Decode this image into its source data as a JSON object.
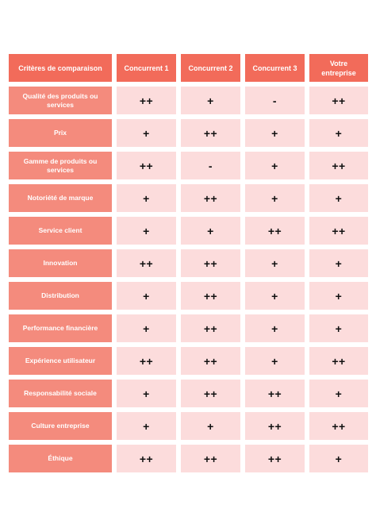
{
  "header": {
    "criteria": "Critères de comparaison",
    "columns": [
      "Concurrent 1",
      "Concurrent 2",
      "Concurrent 3",
      "Votre entreprise"
    ]
  },
  "rows": [
    {
      "criterion": "Qualité des produits ou services",
      "values": [
        "++",
        "+",
        "-",
        "++"
      ]
    },
    {
      "criterion": "Prix",
      "values": [
        "+",
        "++",
        "+",
        "+"
      ]
    },
    {
      "criterion": "Gamme de produits ou services",
      "values": [
        "++",
        "-",
        "+",
        "++"
      ]
    },
    {
      "criterion": "Notoriété de marque",
      "values": [
        "+",
        "++",
        "+",
        "+"
      ]
    },
    {
      "criterion": "Service client",
      "values": [
        "+",
        "+",
        "++",
        "++"
      ]
    },
    {
      "criterion": "Innovation",
      "values": [
        "++",
        "++",
        "+",
        "+"
      ]
    },
    {
      "criterion": "Distribution",
      "values": [
        "+",
        "++",
        "+",
        "+"
      ]
    },
    {
      "criterion": "Performance financière",
      "values": [
        "+",
        "++",
        "+",
        "+"
      ]
    },
    {
      "criterion": "Expérience utilisateur",
      "values": [
        "++",
        "++",
        "+",
        "++"
      ]
    },
    {
      "criterion": "Responsabilité sociale",
      "values": [
        "+",
        "++",
        "++",
        "+"
      ]
    },
    {
      "criterion": "Culture entreprise",
      "values": [
        "+",
        "+",
        "++",
        "++"
      ]
    },
    {
      "criterion": "Éthique",
      "values": [
        "++",
        "++",
        "++",
        "+"
      ]
    }
  ],
  "colors": {
    "header_bg": "#f26b5a",
    "criteria_bg": "#f48b7d",
    "value_bg": "#fcdcdc"
  }
}
